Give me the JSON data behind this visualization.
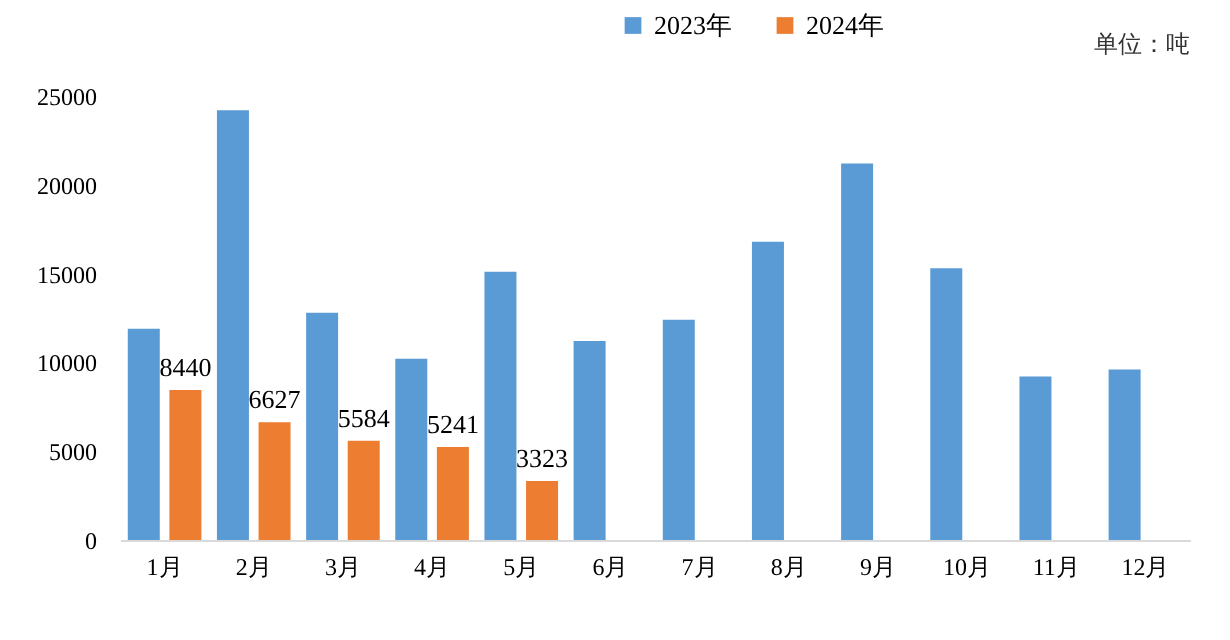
{
  "chart_data": {
    "type": "bar",
    "categories": [
      "1月",
      "2月",
      "3月",
      "4月",
      "5月",
      "6月",
      "7月",
      "8月",
      "9月",
      "10月",
      "11月",
      "12月"
    ],
    "series": [
      {
        "name": "2023年",
        "color": "#5b9bd5",
        "values": [
          11900,
          24200,
          12800,
          10200,
          15100,
          11200,
          12400,
          16800,
          21200,
          15300,
          9200,
          9600
        ]
      },
      {
        "name": "2024年",
        "color": "#ed7d31",
        "values": [
          8440,
          6627,
          5584,
          5241,
          3323,
          null,
          null,
          null,
          null,
          null,
          null,
          null
        ],
        "value_labels": [
          "8440",
          "6627",
          "5584",
          "5241",
          "3323",
          null,
          null,
          null,
          null,
          null,
          null,
          null
        ]
      }
    ],
    "ylim": [
      0,
      25000
    ],
    "yticks": [
      0,
      5000,
      10000,
      15000,
      20000,
      25000
    ],
    "grid": false,
    "legend": "top",
    "annotations": [
      "单位：吨"
    ]
  }
}
